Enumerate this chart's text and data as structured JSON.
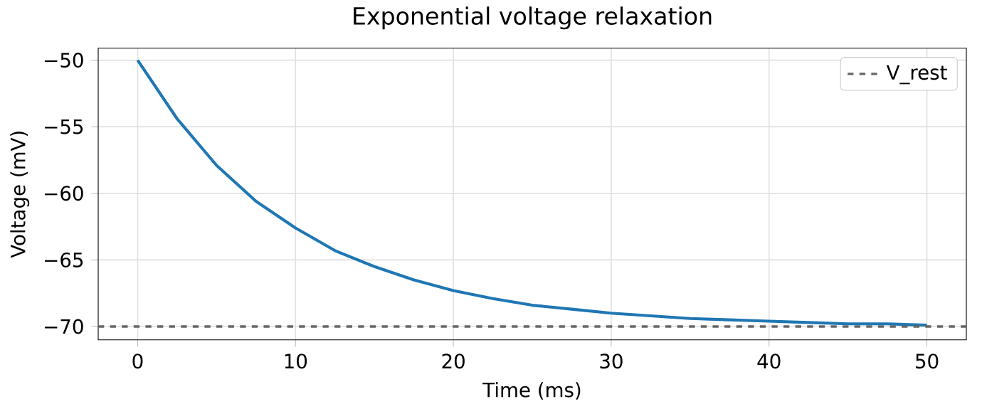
{
  "chart_data": {
    "type": "line",
    "title": "Exponential voltage relaxation",
    "xlabel": "Time (ms)",
    "ylabel": "Voltage (mV)",
    "x": [
      0,
      2.5,
      5,
      7.5,
      10,
      12.5,
      15,
      17.5,
      20,
      22.5,
      25,
      27.5,
      30,
      32.5,
      35,
      37.5,
      40,
      42.5,
      45,
      47.5,
      50
    ],
    "series": [
      {
        "color": "#1f77b4",
        "values": [
          -50,
          -54.4,
          -57.9,
          -60.6,
          -62.6,
          -64.3,
          -65.5,
          -66.5,
          -67.3,
          -67.9,
          -68.4,
          -68.7,
          -69.0,
          -69.2,
          -69.4,
          -69.5,
          -69.6,
          -69.7,
          -69.8,
          -69.8,
          -69.9
        ]
      }
    ],
    "xlim": [
      -2.5,
      52.5
    ],
    "ylim": [
      -71,
      -49.1
    ],
    "xticks": [
      0,
      10,
      20,
      30,
      40,
      50
    ],
    "yticks": [
      {
        "value": -50,
        "label": "−50"
      },
      {
        "value": -55,
        "label": "−55"
      },
      {
        "value": -60,
        "label": "−60"
      },
      {
        "value": -65,
        "label": "−65"
      },
      {
        "value": -70,
        "label": "−70"
      }
    ],
    "ref_lines": [
      {
        "axis": "y",
        "value": -70,
        "label": "V_rest",
        "color": "#666666",
        "line_style": "dashed"
      }
    ],
    "grid": true,
    "legend": "top right",
    "line_style": "solid",
    "marker": "none"
  }
}
